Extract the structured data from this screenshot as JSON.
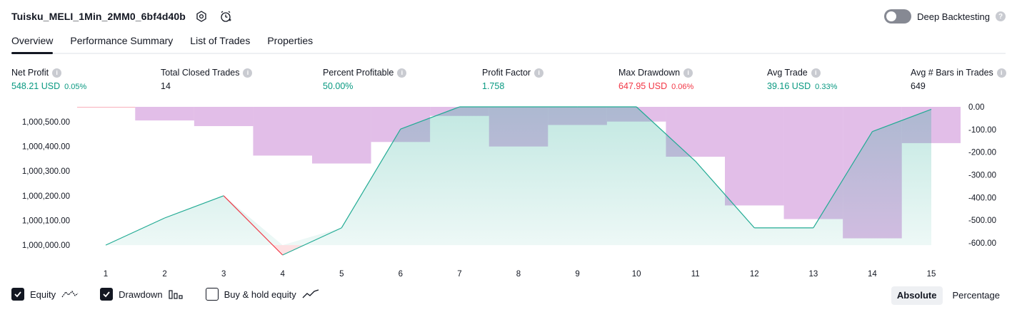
{
  "header": {
    "title": "Tuisku_MELI_1Min_2MM0_6bf4d40b",
    "deep_backtesting_label": "Deep Backtesting"
  },
  "tabs": [
    {
      "label": "Overview"
    },
    {
      "label": "Performance Summary"
    },
    {
      "label": "List of Trades"
    },
    {
      "label": "Properties"
    }
  ],
  "metrics": [
    {
      "label": "Net Profit",
      "value": "548.21 USD",
      "pct": "0.05%",
      "color": "green"
    },
    {
      "label": "Total Closed Trades",
      "value": "14",
      "pct": "",
      "color": "dark"
    },
    {
      "label": "Percent Profitable",
      "value": "50.00%",
      "pct": "",
      "color": "green"
    },
    {
      "label": "Profit Factor",
      "value": "1.758",
      "pct": "",
      "color": "green"
    },
    {
      "label": "Max Drawdown",
      "value": "647.95 USD",
      "pct": "0.06%",
      "color": "red"
    },
    {
      "label": "Avg Trade",
      "value": "39.16 USD",
      "pct": "0.33%",
      "color": "green"
    },
    {
      "label": "Avg # Bars in Trades",
      "value": "649",
      "pct": "",
      "color": "dark"
    }
  ],
  "chart_data": {
    "type": "line",
    "x": [
      1,
      2,
      3,
      4,
      5,
      6,
      7,
      8,
      9,
      10,
      11,
      12,
      13,
      14,
      15
    ],
    "left_axis_ticks": [
      "1,000,500.00",
      "1,000,400.00",
      "1,000,300.00",
      "1,000,200.00",
      "1,000,100.00",
      "1,000,000.00"
    ],
    "right_axis_ticks": [
      "0.00",
      "-100.00",
      "-200.00",
      "-300.00",
      "-400.00",
      "-500.00",
      "-600.00"
    ],
    "left_ylim": [
      999960,
      1000560
    ],
    "right_ylim": [
      -660,
      0
    ],
    "series": [
      {
        "name": "Equity",
        "values": [
          1000000,
          1000110,
          1000200,
          999960,
          1000070,
          1000470,
          1000560,
          1000560,
          1000560,
          1000560,
          1000340,
          1000070,
          1000070,
          1000460,
          1000550
        ],
        "color": "#22ab94"
      },
      {
        "name": "Drawdown",
        "values": [
          0,
          -60,
          -85,
          -215,
          -250,
          -155,
          -40,
          -175,
          -80,
          -65,
          -220,
          -435,
          -495,
          -580,
          -160
        ],
        "color": "#ce93d8"
      }
    ]
  },
  "legend": {
    "equity": {
      "label": "Equity",
      "checked": true
    },
    "drawdown": {
      "label": "Drawdown",
      "checked": true
    },
    "buy_hold": {
      "label": "Buy & hold equity",
      "checked": false
    }
  },
  "mode": {
    "absolute": "Absolute",
    "percentage": "Percentage"
  }
}
